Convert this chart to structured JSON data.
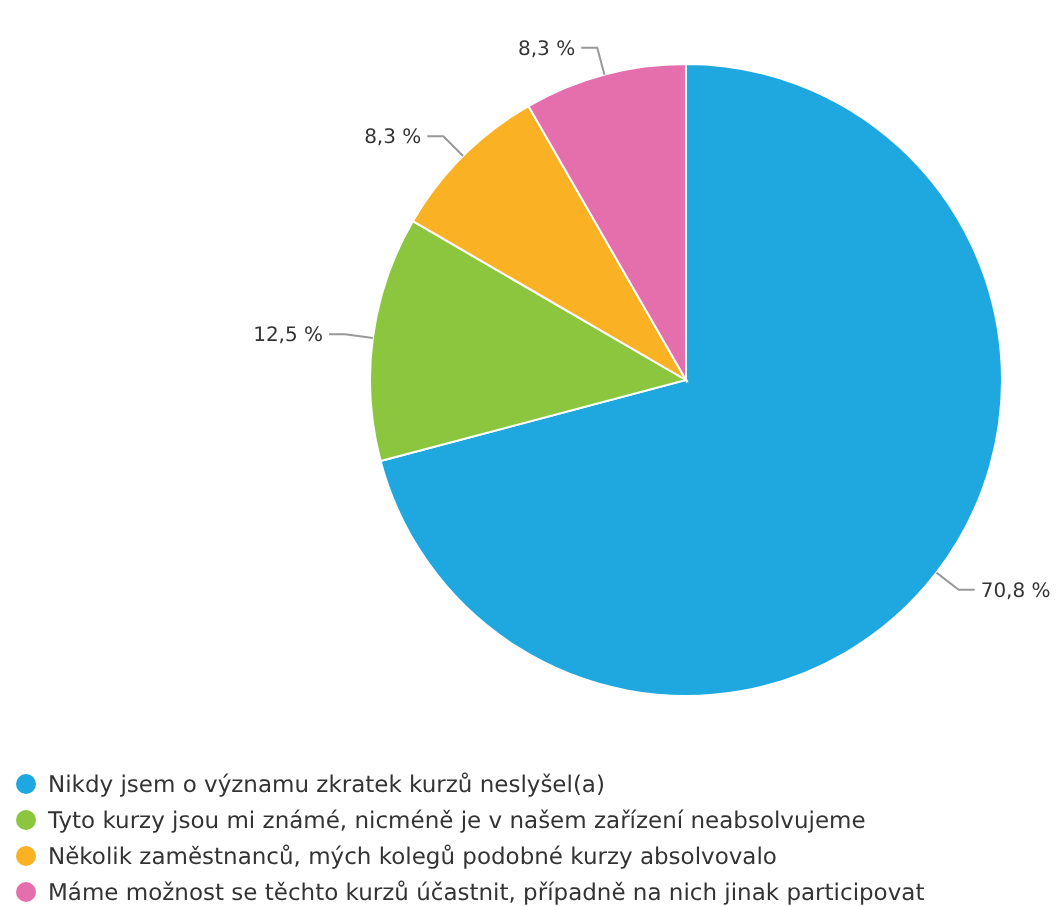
{
  "chart_data": {
    "type": "pie",
    "categories": [
      "Nikdy jsem o významu zkratek kurzů neslyšel(a)",
      "Tyto kurzy jsou mi známé, nicméně je v našem zařízení neabsolvujeme",
      "Několik zaměstnanců, mých kolegů podobné kurzy absolvovalo",
      "Máme možnost se těchto kurzů účastnit, případně na nich jinak participovat"
    ],
    "values": [
      70.8,
      12.5,
      8.3,
      8.3
    ],
    "colors": [
      "#1fa8e0",
      "#8cc63f",
      "#fbb124",
      "#e56fad"
    ],
    "value_labels": [
      "70,8 %",
      "12,5 %",
      "8,3 %",
      "8,3 %"
    ],
    "legend": "bottom left"
  }
}
